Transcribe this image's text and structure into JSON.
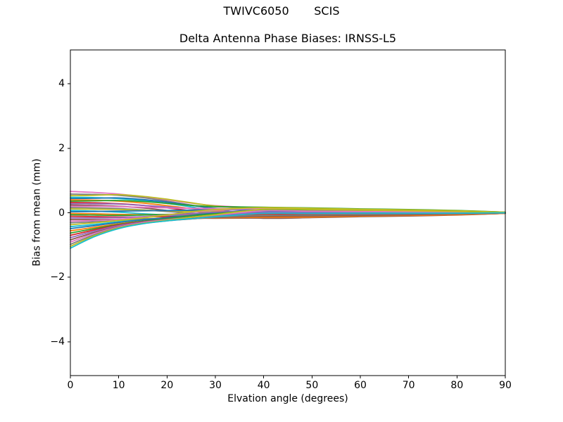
{
  "figure": {
    "suptitle": "TWIVC6050       SCIS",
    "background": "#ffffff",
    "spine_color": "#000000"
  },
  "chart_data": {
    "type": "line",
    "title": "Delta Antenna Phase Biases: IRNSS-L5",
    "xlabel": "Elvation angle (degrees)",
    "ylabel": "Bias from mean (mm)",
    "xlim": [
      0,
      90
    ],
    "ylim": [
      -5.05,
      5.05
    ],
    "x_ticks": [
      0,
      10,
      20,
      30,
      40,
      50,
      60,
      70,
      80,
      90
    ],
    "x_tick_labels": [
      "0",
      "10",
      "20",
      "30",
      "40",
      "50",
      "60",
      "70",
      "80",
      "90"
    ],
    "y_ticks": [
      -4,
      -2,
      0,
      2,
      4
    ],
    "y_tick_labels": [
      "−4",
      "−2",
      "0",
      "2",
      "4"
    ],
    "grid": false,
    "legend": null,
    "palette": [
      "#1f77b4",
      "#ff7f0e",
      "#2ca02c",
      "#d62728",
      "#9467bd",
      "#8c564b",
      "#e377c2",
      "#7f7f7f",
      "#bcbd22",
      "#17becf"
    ],
    "palette_offset": 6,
    "x": [
      0,
      5,
      10,
      15,
      20,
      25,
      30,
      40,
      50,
      60,
      70,
      80,
      90
    ],
    "series": [
      [
        0.66,
        0.63,
        0.58,
        0.5,
        0.4,
        0.3,
        0.22,
        0.15,
        0.14,
        0.11,
        0.09,
        0.06,
        0.02
      ],
      [
        0.58,
        0.57,
        0.54,
        0.47,
        0.36,
        0.24,
        0.12,
        -0.09,
        -0.08,
        -0.06,
        -0.05,
        -0.03,
        -0.01
      ],
      [
        0.53,
        0.54,
        0.56,
        0.51,
        0.42,
        0.31,
        0.21,
        0.12,
        0.11,
        0.08,
        0.07,
        0.05,
        0.01
      ],
      [
        0.48,
        0.47,
        0.44,
        0.38,
        0.29,
        0.18,
        0.05,
        -0.15,
        -0.14,
        -0.11,
        -0.09,
        -0.06,
        -0.02
      ],
      [
        0.44,
        0.45,
        0.46,
        0.41,
        0.33,
        0.23,
        0.14,
        0.05,
        0.05,
        0.04,
        0.03,
        0.02,
        0.01
      ],
      [
        0.4,
        0.39,
        0.36,
        0.3,
        0.22,
        0.13,
        0.06,
        -0.03,
        -0.03,
        -0.02,
        -0.02,
        -0.01,
        0.0
      ],
      [
        0.36,
        0.37,
        0.38,
        0.35,
        0.29,
        0.23,
        0.19,
        0.17,
        0.15,
        0.12,
        0.1,
        0.07,
        0.02
      ],
      [
        0.32,
        0.31,
        0.28,
        0.23,
        0.15,
        0.06,
        -0.03,
        -0.12,
        -0.11,
        -0.08,
        -0.07,
        -0.05,
        -0.01
      ],
      [
        0.28,
        0.28,
        0.27,
        0.23,
        0.18,
        0.13,
        0.1,
        0.09,
        0.08,
        0.06,
        0.05,
        0.03,
        0.01
      ],
      [
        0.24,
        0.23,
        0.2,
        0.15,
        0.07,
        -0.02,
        -0.1,
        -0.17,
        -0.15,
        -0.12,
        -0.1,
        -0.07,
        -0.02
      ],
      [
        0.2,
        0.2,
        0.19,
        0.17,
        0.15,
        0.14,
        0.13,
        0.14,
        0.12,
        0.1,
        0.08,
        0.05,
        0.01
      ],
      [
        0.16,
        0.15,
        0.13,
        0.09,
        0.04,
        -0.01,
        -0.04,
        -0.07,
        -0.06,
        -0.05,
        -0.04,
        -0.03,
        -0.01
      ],
      [
        0.12,
        0.11,
        0.1,
        0.08,
        0.06,
        0.04,
        0.03,
        0.03,
        0.03,
        0.02,
        0.02,
        0.01,
        0.0
      ],
      [
        0.07,
        0.05,
        0.02,
        -0.03,
        -0.07,
        -0.1,
        -0.12,
        -0.14,
        -0.12,
        -0.1,
        -0.08,
        -0.05,
        -0.01
      ],
      [
        0.03,
        0.04,
        0.05,
        0.06,
        0.07,
        0.08,
        0.09,
        0.1,
        0.09,
        0.07,
        0.06,
        0.04,
        0.01
      ],
      [
        -0.02,
        -0.03,
        -0.05,
        -0.06,
        -0.06,
        -0.06,
        -0.06,
        -0.05,
        -0.05,
        -0.04,
        -0.03,
        -0.02,
        -0.01
      ],
      [
        -0.06,
        -0.07,
        -0.08,
        -0.07,
        -0.05,
        -0.03,
        -0.01,
        0.02,
        0.02,
        0.01,
        0.01,
        0.01,
        0.0
      ],
      [
        -0.11,
        -0.12,
        -0.13,
        -0.13,
        -0.12,
        -0.11,
        -0.11,
        -0.1,
        -0.09,
        -0.07,
        -0.06,
        -0.04,
        -0.01
      ],
      [
        -0.16,
        -0.16,
        -0.15,
        -0.12,
        -0.08,
        -0.03,
        0.02,
        0.07,
        0.06,
        0.05,
        0.04,
        0.03,
        0.01
      ],
      [
        -0.21,
        -0.21,
        -0.2,
        -0.19,
        -0.18,
        -0.17,
        -0.17,
        -0.16,
        -0.14,
        -0.11,
        -0.09,
        -0.06,
        -0.02
      ],
      [
        -0.26,
        -0.24,
        -0.2,
        -0.14,
        -0.06,
        0.02,
        0.08,
        0.13,
        0.11,
        0.09,
        0.07,
        0.05,
        0.01
      ],
      [
        -0.31,
        -0.28,
        -0.24,
        -0.2,
        -0.16,
        -0.12,
        -0.08,
        -0.03,
        -0.02,
        -0.02,
        -0.01,
        -0.01,
        0.0
      ],
      [
        -0.37,
        -0.31,
        -0.24,
        -0.16,
        -0.07,
        0.03,
        0.1,
        0.16,
        0.14,
        0.11,
        0.09,
        0.06,
        0.02
      ],
      [
        -0.43,
        -0.36,
        -0.28,
        -0.22,
        -0.18,
        -0.15,
        -0.12,
        -0.09,
        -0.08,
        -0.07,
        -0.05,
        -0.04,
        -0.01
      ],
      [
        -0.49,
        -0.4,
        -0.3,
        -0.22,
        -0.15,
        -0.08,
        -0.02,
        0.04,
        0.04,
        0.03,
        0.02,
        0.02,
        0.0
      ],
      [
        -0.56,
        -0.45,
        -0.34,
        -0.26,
        -0.21,
        -0.18,
        -0.16,
        -0.14,
        -0.13,
        -0.1,
        -0.08,
        -0.06,
        -0.02
      ],
      [
        -0.63,
        -0.49,
        -0.36,
        -0.26,
        -0.18,
        -0.1,
        -0.03,
        0.09,
        0.08,
        0.07,
        0.05,
        0.04,
        0.01
      ],
      [
        -0.7,
        -0.53,
        -0.38,
        -0.28,
        -0.21,
        -0.15,
        -0.1,
        -0.04,
        -0.04,
        -0.03,
        -0.02,
        -0.02,
        0.0
      ],
      [
        -0.77,
        -0.57,
        -0.4,
        -0.29,
        -0.21,
        -0.14,
        -0.08,
        0.01,
        0.01,
        0.01,
        0.0,
        0.0,
        0.0
      ],
      [
        -0.84,
        -0.61,
        -0.43,
        -0.31,
        -0.24,
        -0.19,
        -0.15,
        -0.11,
        -0.1,
        -0.08,
        -0.06,
        -0.04,
        -0.01
      ],
      [
        -0.91,
        -0.64,
        -0.44,
        -0.31,
        -0.22,
        -0.14,
        -0.07,
        0.06,
        0.05,
        0.04,
        0.03,
        0.02,
        0.01
      ],
      [
        -0.98,
        -0.68,
        -0.46,
        -0.33,
        -0.25,
        -0.19,
        -0.14,
        -0.08,
        -0.07,
        -0.05,
        -0.04,
        -0.03,
        -0.01
      ],
      [
        -1.04,
        -0.71,
        -0.47,
        -0.33,
        -0.23,
        -0.14,
        -0.06,
        0.11,
        0.1,
        0.08,
        0.06,
        0.04,
        0.01
      ],
      [
        -1.1,
        -0.74,
        -0.49,
        -0.34,
        -0.25,
        -0.18,
        -0.12,
        -0.02,
        -0.02,
        -0.01,
        -0.01,
        -0.01,
        0.0
      ]
    ]
  }
}
